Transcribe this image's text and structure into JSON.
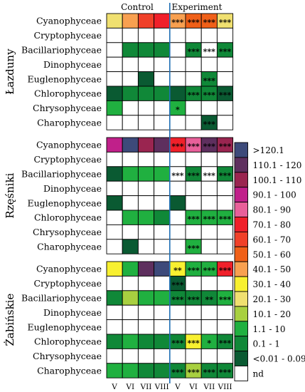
{
  "chart_data": {
    "type": "heatmap",
    "header": {
      "control": "Control",
      "experiment": "Experiment"
    },
    "x_tick_labels": [
      "V",
      "VI",
      "VII",
      "VIII",
      "V",
      "VI",
      "VII",
      "VIII"
    ],
    "row_labels": [
      "Cyanophyceae",
      "Cryptophyceae",
      "Bacillariophyceae",
      "Dinophyceae",
      "Euglenophyceae",
      "Chlorophyceae",
      "Chrysophyceae",
      "Charophyceae"
    ],
    "legend": {
      "bins": [
        ">120.1",
        "110.1 - 120",
        "100.1 - 110",
        "90.1 - 100",
        "80.1 - 90",
        "70.1 - 80",
        "60.1 - 70",
        "50.1 - 60",
        "40.1 - 50",
        "30.1 - 40",
        "20.1 - 30",
        "10.1 - 20",
        "1.1 - 10",
        "0.1 - 1",
        "<0.01 - 0.09",
        "nd"
      ],
      "colors": [
        "#3d4a7a",
        "#5e2f5e",
        "#9a2550",
        "#c0208a",
        "#e8609a",
        "#f0202a",
        "#f04028",
        "#f06018",
        "#f8a050",
        "#f8f030",
        "#f0e070",
        "#a8d040",
        "#20b040",
        "#108838",
        "#0a5a32",
        "#ffffff"
      ]
    },
    "panels": [
      {
        "name": "Łazduny",
        "values": [
          [
            10,
            8,
            6,
            5,
            "40.1 - 50",
            "50.1 - 60",
            "50.1 - 60",
            "20.1 - 30"
          ],
          [
            "nd",
            "nd",
            "nd",
            "nd",
            "nd",
            "nd",
            "nd",
            "nd"
          ],
          [
            "nd",
            13,
            13,
            13,
            "nd",
            13,
            "nd",
            13
          ],
          [
            "nd",
            "nd",
            "nd",
            "nd",
            "nd",
            "nd",
            "nd",
            "nd"
          ],
          [
            "nd",
            "nd",
            14,
            "nd",
            "nd",
            "nd",
            13,
            "nd"
          ],
          [
            14,
            13,
            13,
            13,
            14,
            13,
            13,
            14
          ],
          [
            12,
            "nd",
            "nd",
            "nd",
            12,
            "nd",
            "nd",
            "nd"
          ],
          [
            "nd",
            "nd",
            "nd",
            "nd",
            "nd",
            "nd",
            14,
            "nd"
          ]
        ],
        "significance": [
          [
            "",
            "",
            "",
            "",
            "***",
            "***",
            "***",
            "***"
          ],
          [
            "",
            "",
            "",
            "",
            "",
            "",
            "",
            ""
          ],
          [
            "",
            "",
            "",
            "",
            "",
            "***",
            "***",
            "***"
          ],
          [
            "",
            "",
            "",
            "",
            "",
            "",
            "",
            ""
          ],
          [
            "",
            "",
            "",
            "",
            "",
            "",
            "***",
            ""
          ],
          [
            "",
            "",
            "",
            "",
            "",
            "***",
            "***",
            "***"
          ],
          [
            "",
            "",
            "",
            "",
            "*",
            "",
            "",
            ""
          ],
          [
            "",
            "",
            "",
            "",
            "",
            "",
            "***",
            ""
          ]
        ]
      },
      {
        "name": "Rzęśniki",
        "values": [
          [
            3,
            0,
            2,
            1,
            5,
            4,
            1,
            2
          ],
          [
            "nd",
            "nd",
            "nd",
            "nd",
            "nd",
            "nd",
            "nd",
            "nd"
          ],
          [
            14,
            12,
            12,
            12,
            "nd",
            13,
            "nd",
            13
          ],
          [
            "nd",
            "nd",
            "nd",
            "nd",
            "nd",
            "nd",
            "nd",
            "nd"
          ],
          [
            14,
            "nd",
            "nd",
            "nd",
            14,
            "nd",
            "nd",
            "nd"
          ],
          [
            "nd",
            12,
            12,
            13,
            "nd",
            12,
            12,
            12
          ],
          [
            "nd",
            "nd",
            "nd",
            "nd",
            "nd",
            "nd",
            "nd",
            "nd"
          ],
          [
            "nd",
            14,
            "nd",
            "nd",
            "nd",
            12,
            "nd",
            "nd"
          ]
        ],
        "significance": [
          [
            "",
            "",
            "",
            "",
            "***",
            "***",
            "***",
            "***"
          ],
          [
            "",
            "",
            "",
            "",
            "",
            "",
            "",
            ""
          ],
          [
            "",
            "",
            "",
            "",
            "***",
            "***",
            "***",
            "***"
          ],
          [
            "",
            "",
            "",
            "",
            "",
            "",
            "",
            ""
          ],
          [
            "",
            "",
            "",
            "",
            "",
            "",
            "",
            ""
          ],
          [
            "",
            "",
            "",
            "",
            "",
            "***",
            "***",
            "***"
          ],
          [
            "",
            "",
            "",
            "",
            "",
            "",
            "",
            ""
          ],
          [
            "",
            "",
            "",
            "",
            "",
            "***",
            "",
            ""
          ]
        ]
      },
      {
        "name": "Żabińskie",
        "values": [
          [
            9,
            12,
            1,
            0,
            9,
            12,
            12,
            5
          ],
          [
            "nd",
            "nd",
            "nd",
            "nd",
            14,
            "nd",
            "nd",
            "nd"
          ],
          [
            13,
            11,
            12,
            12,
            13,
            13,
            13,
            12
          ],
          [
            "nd",
            "nd",
            "nd",
            "nd",
            "nd",
            "nd",
            "nd",
            "nd"
          ],
          [
            "nd",
            "nd",
            "nd",
            "nd",
            "nd",
            "nd",
            "nd",
            "nd"
          ],
          [
            13,
            12,
            13,
            13,
            13,
            9,
            12,
            13
          ],
          [
            "nd",
            "nd",
            "nd",
            "nd",
            "nd",
            "nd",
            "nd",
            "nd"
          ],
          [
            12,
            12,
            13,
            13,
            13,
            11,
            13,
            13
          ]
        ],
        "significance": [
          [
            "",
            "",
            "",
            "",
            "**",
            "***",
            "***",
            "***"
          ],
          [
            "",
            "",
            "",
            "",
            "***",
            "",
            "",
            ""
          ],
          [
            "",
            "",
            "",
            "",
            "***",
            "***",
            "**",
            "***"
          ],
          [
            "",
            "",
            "",
            "",
            "",
            "",
            "",
            ""
          ],
          [
            "",
            "",
            "",
            "",
            "",
            "",
            "",
            ""
          ],
          [
            "",
            "",
            "",
            "",
            "***",
            "***",
            "*",
            "***"
          ],
          [
            "",
            "",
            "",
            "",
            "",
            "",
            "",
            ""
          ],
          [
            "",
            "",
            "",
            "",
            "***",
            "***",
            "***",
            "***"
          ]
        ]
      }
    ]
  }
}
